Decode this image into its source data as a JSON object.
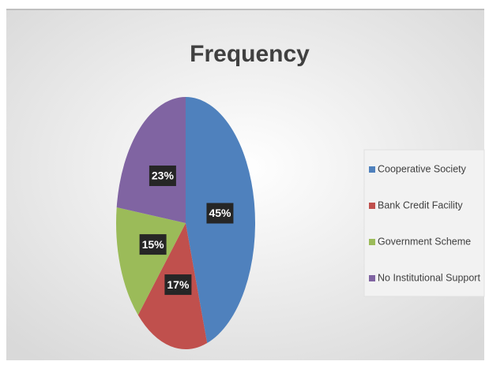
{
  "chart_data": {
    "type": "pie",
    "title": "Frequency",
    "categories": [
      "Cooperative Society",
      "Bank Credit Facility",
      "Government Scheme",
      "No Institutional Support"
    ],
    "values": [
      45,
      17,
      15,
      23
    ],
    "value_labels": [
      "45%",
      "17%",
      "15%",
      "23%"
    ],
    "colors": [
      "#4f81bd",
      "#c0504d",
      "#9bbb59",
      "#8064a2"
    ],
    "legend": "right"
  }
}
